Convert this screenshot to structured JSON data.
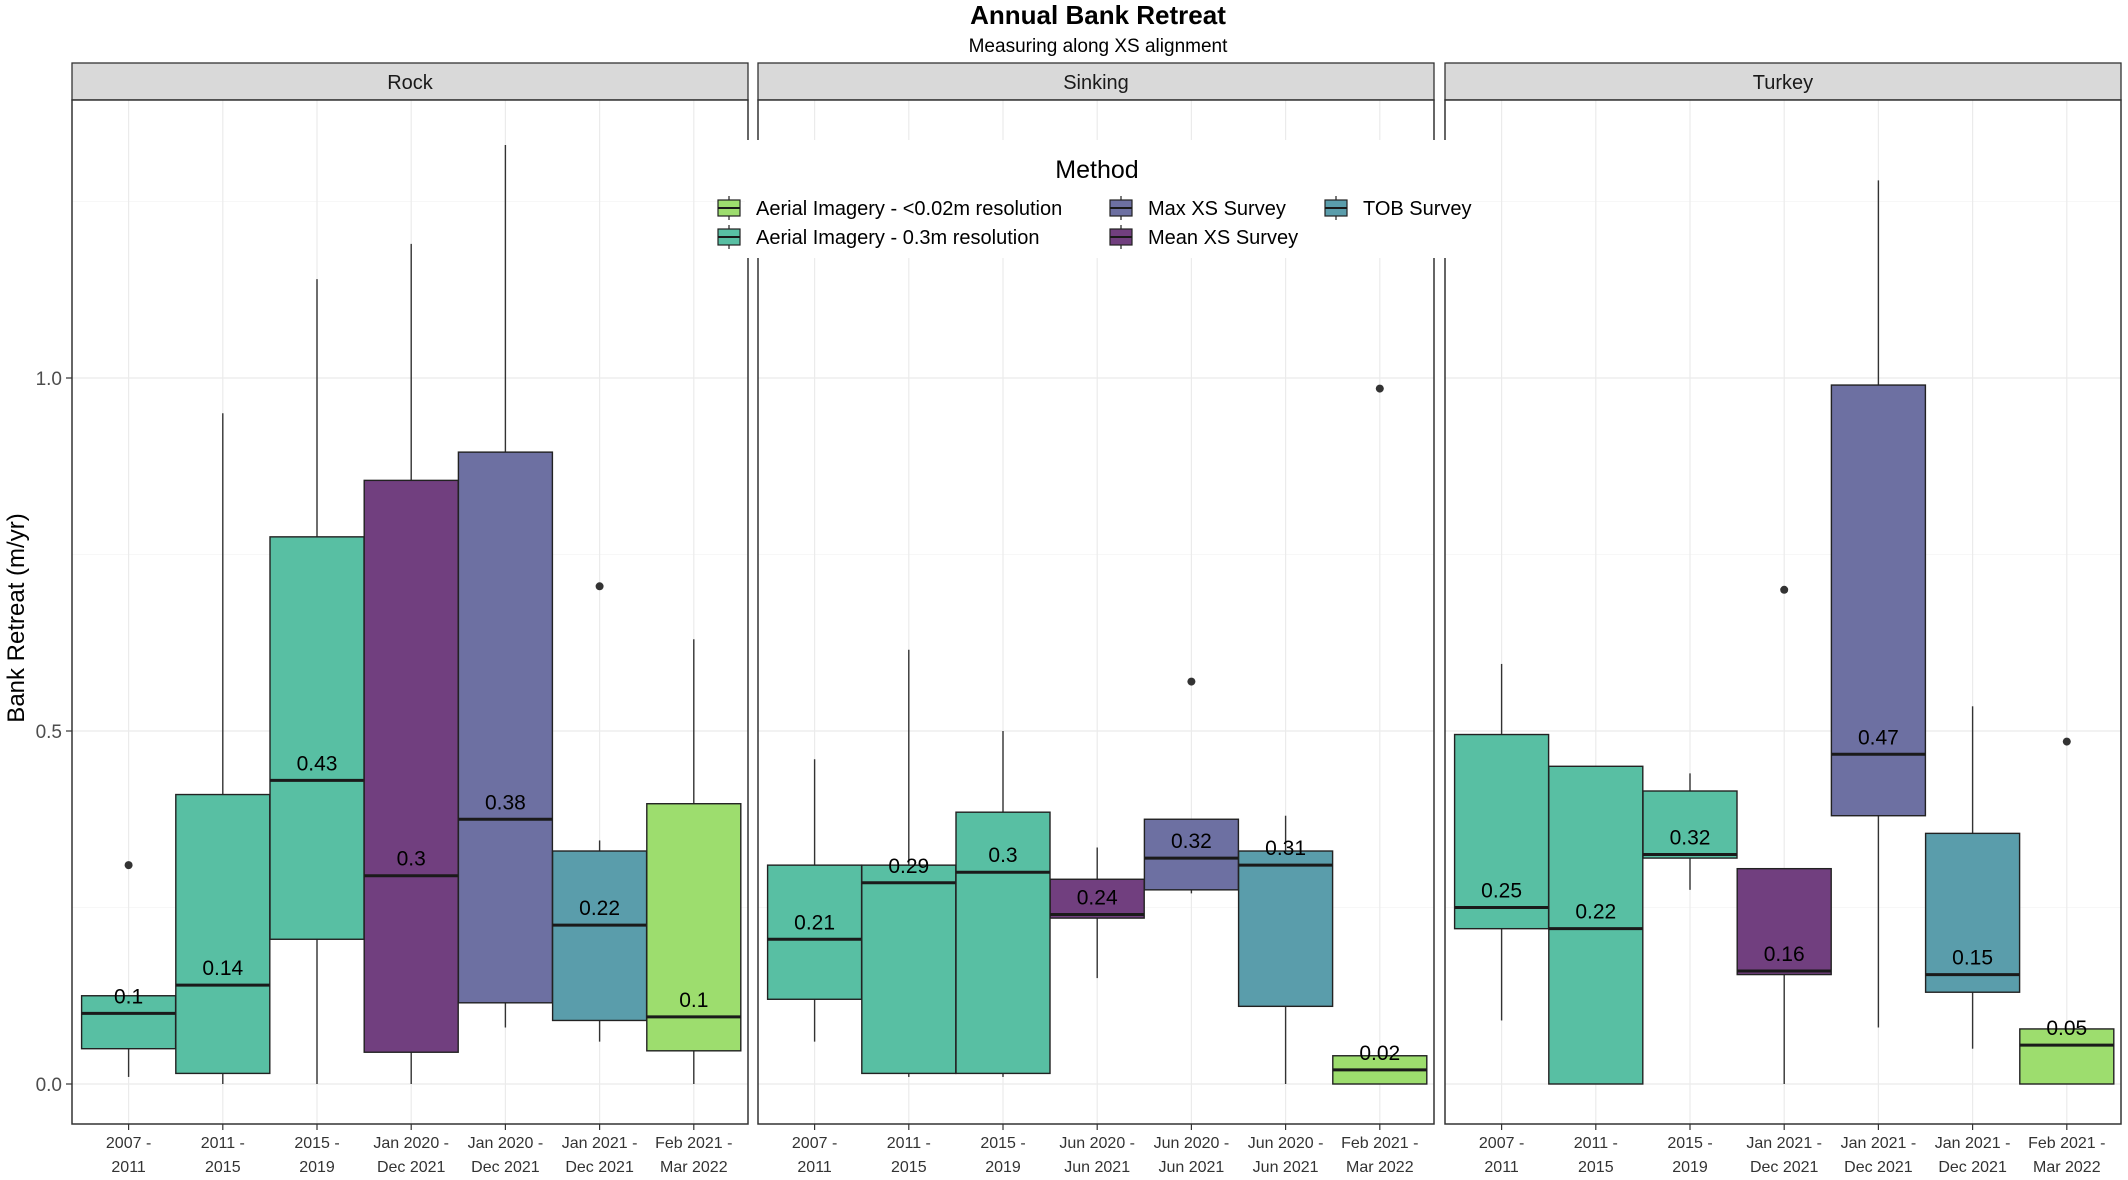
{
  "chart_data": {
    "type": "boxplot",
    "title": "Annual Bank Retreat",
    "subtitle": "Measuring along XS alignment",
    "ylabel": "Bank Retreat (m/yr)",
    "xlabel": "",
    "ylim": [
      -0.07,
      1.4
    ],
    "yticks": [
      {
        "value": 0.0,
        "label": "0.0"
      },
      {
        "value": 0.5,
        "label": "0.5"
      },
      {
        "value": 1.0,
        "label": "1.0"
      }
    ],
    "grid": true,
    "legend": {
      "title": "Method",
      "placement": "top-center",
      "entries": [
        {
          "key": "aerial_002",
          "label": "Aerial Imagery  -  <0.02m resolution",
          "color": "#9DDD6E"
        },
        {
          "key": "aerial_03",
          "label": "Aerial Imagery  -  0.3m resolution",
          "color": "#58BFA3"
        },
        {
          "key": "max_xs",
          "label": "Max XS Survey",
          "color": "#6D70A2"
        },
        {
          "key": "mean_xs",
          "label": "Mean XS Survey",
          "color": "#713F7F"
        },
        {
          "key": "tob",
          "label": "TOB Survey",
          "color": "#5A9DAB"
        }
      ]
    },
    "panels": [
      {
        "name": "Rock",
        "groups": [
          {
            "x_line1": "2007 -",
            "x_line2": "2011",
            "method": "aerial_03",
            "min": 0.01,
            "q1": 0.05,
            "median": 0.1,
            "q3": 0.125,
            "max": 0.125,
            "outliers": [
              0.31
            ],
            "label": "0.1"
          },
          {
            "x_line1": "2011 -",
            "x_line2": "2015",
            "method": "aerial_03",
            "min": 0.0,
            "q1": 0.015,
            "median": 0.14,
            "q3": 0.41,
            "max": 0.95,
            "outliers": [],
            "label": "0.14"
          },
          {
            "x_line1": "2015 -",
            "x_line2": "2019",
            "method": "aerial_03",
            "min": 0.0,
            "q1": 0.205,
            "median": 0.43,
            "q3": 0.775,
            "max": 1.14,
            "outliers": [],
            "label": "0.43"
          },
          {
            "x_line1": "Jan 2020 -",
            "x_line2": "Dec 2021",
            "method": "mean_xs",
            "min": 0.0,
            "q1": 0.045,
            "median": 0.295,
            "q3": 0.855,
            "max": 1.19,
            "outliers": [],
            "label": "0.3"
          },
          {
            "x_line1": "Jan 2020 -",
            "x_line2": "Dec 2021",
            "method": "max_xs",
            "min": 0.08,
            "q1": 0.115,
            "median": 0.375,
            "q3": 0.895,
            "max": 1.33,
            "outliers": [],
            "label": "0.38"
          },
          {
            "x_line1": "Jan 2021 -",
            "x_line2": "Dec 2021",
            "method": "tob",
            "min": 0.06,
            "q1": 0.09,
            "median": 0.225,
            "q3": 0.33,
            "max": 0.345,
            "outliers": [
              0.705
            ],
            "label": "0.22"
          },
          {
            "x_line1": "Feb 2021 -",
            "x_line2": "Mar 2022",
            "method": "aerial_002",
            "min": 0.0,
            "q1": 0.047,
            "median": 0.095,
            "q3": 0.397,
            "max": 0.63,
            "outliers": [],
            "label": "0.1"
          }
        ]
      },
      {
        "name": "Sinking",
        "groups": [
          {
            "x_line1": "2007 -",
            "x_line2": "2011",
            "method": "aerial_03",
            "min": 0.06,
            "q1": 0.12,
            "median": 0.205,
            "q3": 0.31,
            "max": 0.46,
            "outliers": [],
            "label": "0.21"
          },
          {
            "x_line1": "2011 -",
            "x_line2": "2015",
            "method": "aerial_03",
            "min": 0.01,
            "q1": 0.015,
            "median": 0.285,
            "q3": 0.31,
            "max": 0.615,
            "outliers": [],
            "label": "0.29"
          },
          {
            "x_line1": "2015 -",
            "x_line2": "2019",
            "method": "aerial_03",
            "min": 0.01,
            "q1": 0.015,
            "median": 0.3,
            "q3": 0.385,
            "max": 0.5,
            "outliers": [],
            "label": "0.3"
          },
          {
            "x_line1": "Jun 2020 -",
            "x_line2": "Jun 2021",
            "method": "mean_xs",
            "min": 0.15,
            "q1": 0.235,
            "median": 0.24,
            "q3": 0.29,
            "max": 0.335,
            "outliers": [],
            "label": "0.24"
          },
          {
            "x_line1": "Jun 2020 -",
            "x_line2": "Jun 2021",
            "method": "max_xs",
            "min": 0.27,
            "q1": 0.275,
            "median": 0.32,
            "q3": 0.375,
            "max": 0.375,
            "outliers": [
              0.57
            ],
            "label": "0.32"
          },
          {
            "x_line1": "Jun 2020 -",
            "x_line2": "Jun 2021",
            "method": "tob",
            "min": 0.0,
            "q1": 0.11,
            "median": 0.31,
            "q3": 0.33,
            "max": 0.38,
            "outliers": [],
            "label": "0.31"
          },
          {
            "x_line1": "Feb 2021 -",
            "x_line2": "Mar 2022",
            "method": "aerial_002",
            "min": 0.0,
            "q1": 0.0,
            "median": 0.02,
            "q3": 0.04,
            "max": 0.04,
            "outliers": [
              0.985
            ],
            "label": "0.02"
          }
        ]
      },
      {
        "name": "Turkey",
        "groups": [
          {
            "x_line1": "2007 -",
            "x_line2": "2011",
            "method": "aerial_03",
            "min": 0.09,
            "q1": 0.22,
            "median": 0.25,
            "q3": 0.495,
            "max": 0.595,
            "outliers": [],
            "label": "0.25"
          },
          {
            "x_line1": "2011 -",
            "x_line2": "2015",
            "method": "aerial_03",
            "min": 0.0,
            "q1": 0.0,
            "median": 0.22,
            "q3": 0.45,
            "max": 0.45,
            "outliers": [],
            "label": "0.22"
          },
          {
            "x_line1": "2015 -",
            "x_line2": "2019",
            "method": "aerial_03",
            "min": 0.275,
            "q1": 0.32,
            "median": 0.325,
            "q3": 0.415,
            "max": 0.44,
            "outliers": [],
            "label": "0.32"
          },
          {
            "x_line1": "Jan 2021 -",
            "x_line2": "Dec 2021",
            "method": "mean_xs",
            "min": 0.0,
            "q1": 0.155,
            "median": 0.16,
            "q3": 0.305,
            "max": 0.305,
            "outliers": [
              0.7
            ],
            "label": "0.16"
          },
          {
            "x_line1": "Jan 2021 -",
            "x_line2": "Dec 2021",
            "method": "max_xs",
            "min": 0.08,
            "q1": 0.38,
            "median": 0.467,
            "q3": 0.99,
            "max": 1.28,
            "outliers": [],
            "label": "0.47"
          },
          {
            "x_line1": "Jan 2021 -",
            "x_line2": "Dec 2021",
            "method": "tob",
            "min": 0.05,
            "q1": 0.13,
            "median": 0.155,
            "q3": 0.355,
            "max": 0.535,
            "outliers": [],
            "label": "0.15"
          },
          {
            "x_line1": "Feb 2021 -",
            "x_line2": "Mar 2022",
            "method": "aerial_002",
            "min": 0.0,
            "q1": 0.0,
            "median": 0.055,
            "q3": 0.078,
            "max": 0.078,
            "outliers": [
              0.485
            ],
            "label": "0.05"
          }
        ]
      }
    ]
  }
}
